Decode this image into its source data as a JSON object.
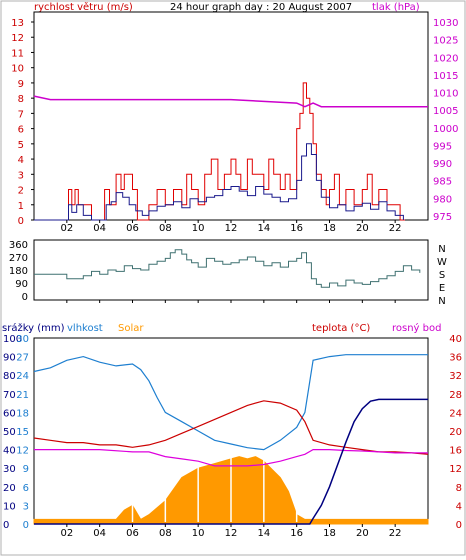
{
  "header": {
    "left_label": "rychlost větru (m/s)",
    "title": "24 hour graph day : 20 August 2007",
    "right_label": "tlak (hPa)"
  },
  "bottom_legend": {
    "precip": "srážky (mm)",
    "humidity": "vlhkost",
    "solar": "Solar",
    "temperature": "teplota (°C)",
    "dewpoint": "rosný bod"
  },
  "colors": {
    "wind_speed": "#1a1a8c",
    "wind_gust": "#e00000",
    "pressure": "#cc00cc",
    "direction": "#3f7070",
    "humidity": "#1e7fd0",
    "solar": "#ff9900",
    "temperature": "#cc0000",
    "dewpoint": "#dd00dd",
    "precip": "#000080",
    "right_axis_pressure": "#cc00cc",
    "right_axis_temp": "#cc0000",
    "left_axis_wind": "#cc0000",
    "left_axis_precip": "#000080",
    "left_axis_humidity": "#1e7fd0"
  },
  "chart_data": [
    {
      "type": "line",
      "panel": "wind-pressure",
      "x_ticks": [
        "02",
        "04",
        "06",
        "08",
        "10",
        "12",
        "14",
        "16",
        "18",
        "20",
        "22"
      ],
      "xlim": [
        0,
        24
      ],
      "left_axis": {
        "label": "rychlost větru (m/s)",
        "ylim": [
          0,
          13
        ],
        "ticks": [
          0,
          1,
          2,
          3,
          4,
          5,
          6,
          7,
          8,
          9,
          10,
          11,
          12,
          13
        ]
      },
      "right_axis": {
        "label": "tlak (hPa)",
        "ylim": [
          975,
          1030
        ],
        "ticks": [
          975,
          980,
          985,
          990,
          995,
          1000,
          1005,
          1010,
          1015,
          1020,
          1025,
          1030
        ]
      },
      "series": [
        {
          "name": "gust",
          "axis": "left",
          "style": "step",
          "x": [
            0,
            2,
            2.1,
            2.3,
            2.5,
            2.7,
            3,
            3.5,
            4,
            4.3,
            4.6,
            5,
            5.3,
            5.5,
            6,
            6.3,
            6.6,
            7,
            7.5,
            8,
            8.5,
            9,
            9.3,
            9.6,
            10,
            10.4,
            10.8,
            11.2,
            11.6,
            12,
            12.3,
            12.6,
            13,
            13.3,
            13.6,
            14,
            14.3,
            14.6,
            15,
            15.3,
            15.6,
            16,
            16.2,
            16.4,
            16.6,
            16.8,
            17,
            17.2,
            17.5,
            17.8,
            18,
            18.3,
            18.6,
            19,
            19.5,
            20,
            20.3,
            20.6,
            21,
            21.5,
            22,
            22.3,
            22.6
          ],
          "y": [
            0,
            0,
            2,
            1,
            2,
            1,
            1,
            0,
            0,
            2,
            1,
            3,
            2,
            3,
            2,
            0,
            0,
            1,
            2,
            1,
            2,
            1,
            3,
            2,
            1,
            3,
            4,
            2,
            3,
            4,
            3,
            2,
            4,
            3,
            3,
            2,
            4,
            3,
            2,
            3,
            2,
            6,
            7,
            9,
            8,
            7,
            5,
            3,
            2,
            1,
            2,
            3,
            1,
            2,
            1,
            2,
            3,
            1,
            2,
            1,
            1,
            0,
            0
          ]
        },
        {
          "name": "speed",
          "axis": "left",
          "style": "step",
          "x": [
            0,
            2,
            2.1,
            2.3,
            2.6,
            3,
            3.5,
            4,
            4.4,
            4.7,
            5,
            5.4,
            5.8,
            6.2,
            6.6,
            7,
            7.5,
            8,
            8.5,
            9,
            9.5,
            10,
            10.5,
            11,
            11.5,
            12,
            12.5,
            13,
            13.5,
            14,
            14.5,
            15,
            15.5,
            16,
            16.3,
            16.6,
            16.9,
            17.2,
            17.5,
            18,
            18.5,
            19,
            19.5,
            20,
            20.5,
            21,
            21.5,
            22,
            22.5
          ],
          "y": [
            0,
            0,
            1,
            0.5,
            1,
            0.3,
            0,
            0,
            1,
            1.2,
            1.8,
            1.5,
            1,
            0.6,
            0.3,
            0.6,
            0.9,
            1,
            1.2,
            0.8,
            1.4,
            1.2,
            1.5,
            1.6,
            2,
            2.2,
            1.9,
            1.6,
            2.2,
            1.7,
            1.5,
            1.2,
            1.4,
            2.6,
            4.2,
            5,
            4.3,
            2.6,
            1.5,
            0.8,
            1,
            0.6,
            0.9,
            1.1,
            0.7,
            1.2,
            0.6,
            0.3,
            0
          ]
        },
        {
          "name": "pressure",
          "axis": "right",
          "style": "line",
          "x": [
            0,
            1,
            4,
            8,
            12,
            16,
            16.5,
            17,
            17.5,
            18,
            20,
            22,
            24
          ],
          "y": [
            1009,
            1008,
            1008,
            1008,
            1008,
            1007,
            1006,
            1007,
            1006,
            1006,
            1006,
            1006,
            1006
          ]
        }
      ]
    },
    {
      "type": "line",
      "panel": "wind-direction",
      "x_ticks": [
        "02",
        "04",
        "06",
        "08",
        "10",
        "12",
        "14",
        "16",
        "18",
        "20",
        "22"
      ],
      "xlim": [
        0,
        24
      ],
      "left_axis": {
        "ylim": [
          0,
          360
        ],
        "ticks": [
          0,
          90,
          180,
          270,
          360
        ]
      },
      "right_axis": {
        "ticks": [
          "N",
          "W",
          "S",
          "E",
          "N"
        ]
      },
      "series": [
        {
          "name": "direction",
          "style": "step",
          "x": [
            0,
            1,
            2,
            3,
            3.5,
            4,
            4.5,
            5,
            5.5,
            6,
            6.5,
            7,
            7.5,
            8,
            8.3,
            8.6,
            9,
            9.3,
            9.6,
            10,
            10.5,
            11,
            11.5,
            12,
            12.5,
            13,
            13.5,
            14,
            14.5,
            15,
            15.5,
            16,
            16.3,
            16.6,
            16.9,
            17.2,
            17.5,
            18,
            18.5,
            19,
            19.5,
            20,
            20.5,
            21,
            21.5,
            22,
            22.5,
            23,
            23.5
          ],
          "y": [
            150,
            150,
            120,
            140,
            170,
            150,
            180,
            170,
            210,
            190,
            180,
            220,
            240,
            260,
            300,
            320,
            290,
            250,
            230,
            200,
            260,
            240,
            220,
            230,
            250,
            270,
            240,
            210,
            230,
            200,
            240,
            260,
            300,
            230,
            120,
            80,
            60,
            90,
            70,
            110,
            90,
            80,
            100,
            120,
            140,
            170,
            210,
            180,
            160
          ]
        }
      ]
    },
    {
      "type": "line",
      "panel": "temp-humidity-solar",
      "x_ticks": [
        "02",
        "04",
        "06",
        "08",
        "10",
        "12",
        "14",
        "16",
        "18",
        "20",
        "22"
      ],
      "xlim": [
        0,
        24
      ],
      "left_axis_precip": {
        "label": "srážky (mm)",
        "ticks": [
          0,
          10,
          20,
          30,
          40,
          50,
          60,
          70,
          80,
          90,
          100
        ]
      },
      "left_axis_humidity": {
        "label": "vlhkost",
        "ticks": [
          0,
          3,
          6,
          9,
          12,
          15,
          18,
          21,
          24,
          27,
          30
        ]
      },
      "right_axis": {
        "label": "teplota (°C)",
        "ylim": [
          0,
          40
        ],
        "ticks": [
          0,
          4,
          8,
          12,
          16,
          20,
          24,
          28,
          32,
          36,
          40
        ]
      },
      "series": [
        {
          "name": "humidity",
          "axis": "humidity_pct",
          "style": "line",
          "x": [
            0,
            1,
            2,
            3,
            4,
            5,
            6,
            6.5,
            7,
            7.5,
            8,
            9,
            10,
            11,
            12,
            13,
            14,
            15,
            16,
            16.5,
            17,
            18,
            19,
            20,
            21,
            22,
            23,
            24
          ],
          "y": [
            82,
            84,
            88,
            90,
            87,
            85,
            86,
            83,
            77,
            68,
            60,
            55,
            50,
            45,
            43,
            41,
            40,
            45,
            52,
            60,
            88,
            90,
            91,
            91,
            91,
            91,
            91,
            91
          ]
        },
        {
          "name": "temperature",
          "axis": "right",
          "style": "line",
          "x": [
            0,
            1,
            2,
            3,
            4,
            5,
            6,
            7,
            8,
            9,
            10,
            11,
            12,
            13,
            14,
            15,
            16,
            16.5,
            17,
            18,
            19,
            20,
            21,
            22,
            23,
            24
          ],
          "y": [
            18.5,
            18,
            17.5,
            17.5,
            17,
            17,
            16.5,
            17,
            18,
            19.5,
            21,
            22.5,
            24,
            25.5,
            26.5,
            26,
            24.5,
            22,
            18,
            17,
            16.5,
            16,
            15.5,
            15.5,
            15.3,
            15
          ]
        },
        {
          "name": "dewpoint",
          "axis": "right",
          "style": "line",
          "x": [
            0,
            2,
            4,
            6,
            7,
            8,
            9,
            10,
            11,
            12,
            13,
            14,
            15,
            16,
            16.5,
            17,
            18,
            19,
            20,
            21,
            22,
            23,
            24
          ],
          "y": [
            16,
            16,
            16,
            15.5,
            15.5,
            14.5,
            14,
            13.5,
            12.5,
            12.5,
            12.5,
            12.8,
            13.5,
            14.5,
            15,
            16,
            16,
            15.8,
            15.7,
            15.5,
            15.3,
            15.3,
            15.3
          ]
        },
        {
          "name": "solar",
          "axis": "right",
          "style": "area",
          "x": [
            0,
            5,
            5.5,
            6,
            6.5,
            7,
            8,
            9,
            10,
            11,
            12,
            12.5,
            13,
            13.5,
            14,
            15,
            15.5,
            16,
            16.5,
            17,
            24
          ],
          "y": [
            1,
            1,
            3,
            4,
            1,
            2,
            5,
            10,
            12,
            13,
            14,
            14.5,
            14,
            14.5,
            13.5,
            10,
            7,
            2,
            1,
            1,
            1
          ]
        },
        {
          "name": "precip",
          "axis": "precip_mm",
          "style": "line",
          "x": [
            0,
            16.8,
            17,
            17.5,
            18,
            18.5,
            19,
            19.5,
            20,
            20.5,
            21,
            22,
            24
          ],
          "y": [
            0,
            0,
            3,
            10,
            20,
            32,
            44,
            55,
            62,
            66,
            67,
            67,
            67
          ]
        }
      ]
    }
  ]
}
